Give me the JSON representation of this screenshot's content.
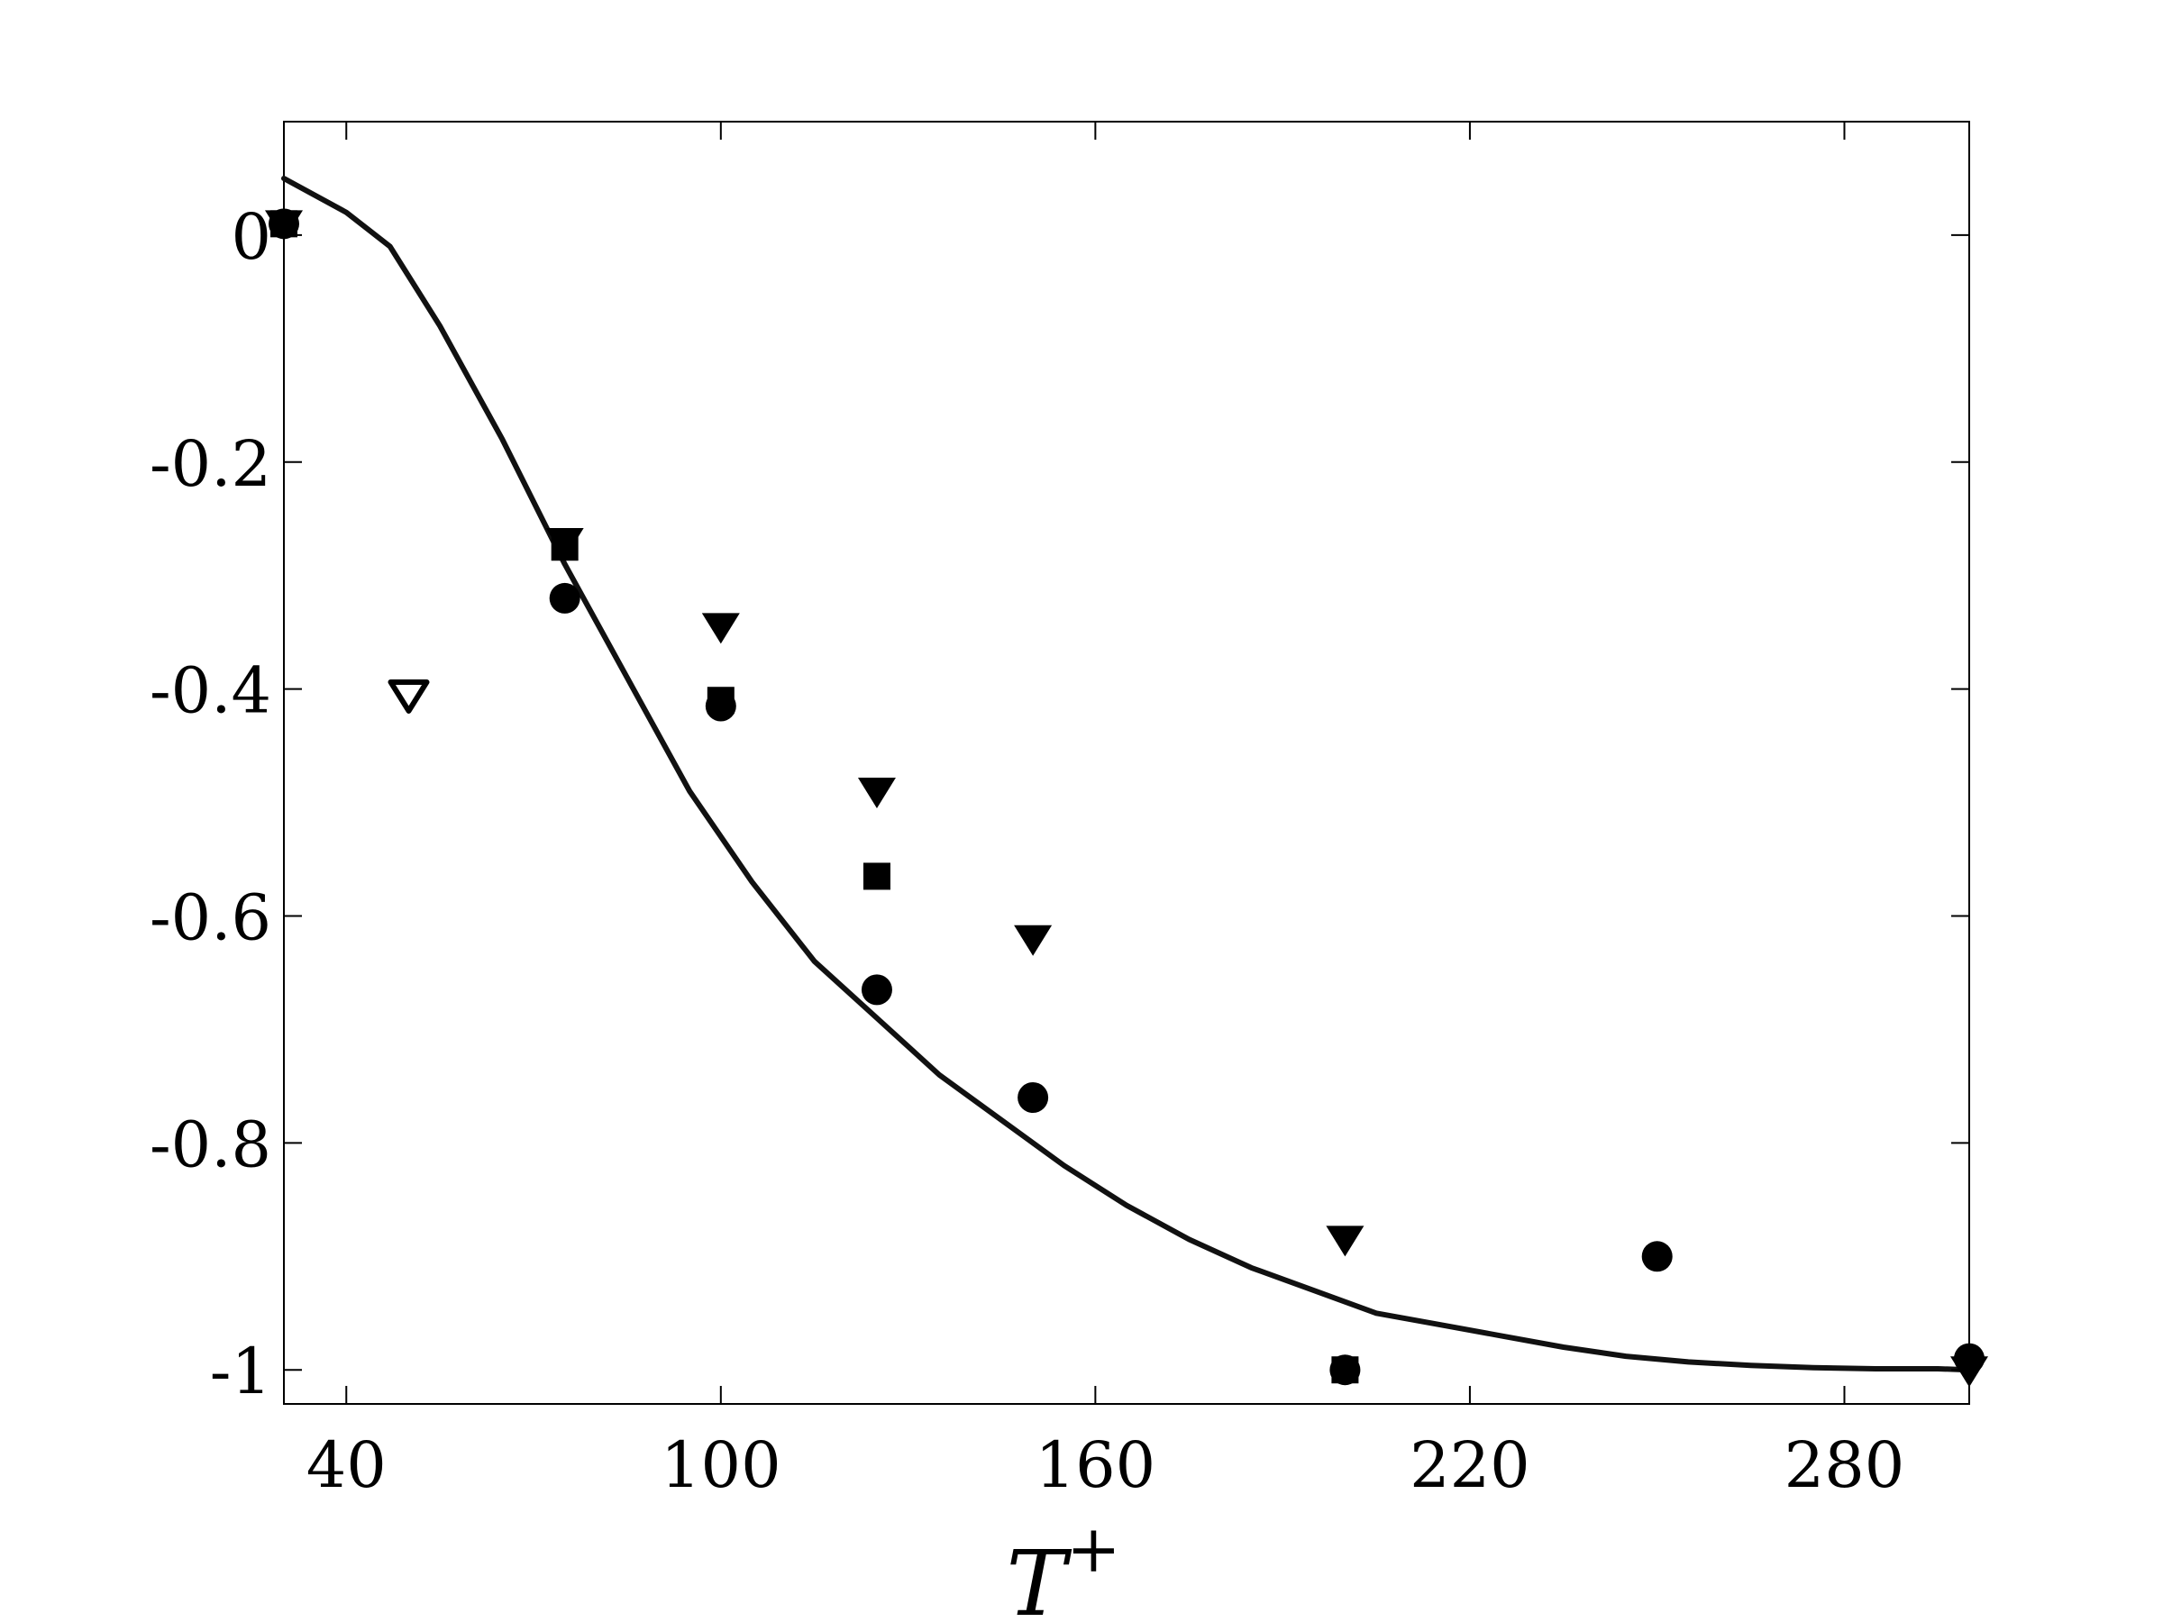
{
  "chart_data": {
    "type": "scatter",
    "xlabel": "T",
    "xlabel_superscript": "+",
    "ylabel": "",
    "xlim": [
      30,
      300
    ],
    "ylim": [
      -1.03,
      0.1
    ],
    "xticks": [
      40,
      100,
      160,
      220,
      280
    ],
    "yticks": [
      0,
      -0.2,
      -0.4,
      -0.6,
      -0.8,
      -1
    ],
    "xtick_labels": [
      "40",
      "100",
      "160",
      "220",
      "280"
    ],
    "ytick_labels": [
      "0",
      "-0.2",
      "-0.4",
      "-0.6",
      "-0.8",
      "-1"
    ],
    "grid": false,
    "series": [
      {
        "marker": "line",
        "color": "#111111",
        "x": [
          30,
          40,
          47,
          55,
          65,
          75,
          85,
          95,
          105,
          115,
          125,
          135,
          145,
          155,
          165,
          175,
          185,
          195,
          205,
          215,
          225,
          235,
          245,
          255,
          265,
          275,
          285,
          295,
          300
        ],
        "y": [
          0.05,
          0.02,
          -0.01,
          -0.08,
          -0.18,
          -0.29,
          -0.39,
          -0.49,
          -0.57,
          -0.64,
          -0.69,
          -0.74,
          -0.78,
          -0.82,
          -0.855,
          -0.885,
          -0.91,
          -0.93,
          -0.95,
          -0.96,
          -0.97,
          -0.98,
          -0.988,
          -0.993,
          -0.996,
          -0.998,
          -0.999,
          -0.999,
          -1.0
        ]
      },
      {
        "marker": "circle",
        "color": "#000000",
        "x": [
          30,
          75,
          100,
          125,
          150,
          200,
          250,
          300
        ],
        "y": [
          0.01,
          -0.32,
          -0.415,
          -0.665,
          -0.76,
          -1.0,
          -0.9,
          -0.99
        ]
      },
      {
        "marker": "square",
        "color": "#000000",
        "x": [
          30,
          75,
          100,
          125,
          200
        ],
        "y": [
          0.01,
          -0.275,
          -0.41,
          -0.565,
          -1.0
        ]
      },
      {
        "marker": "triangle-down",
        "color": "#000000",
        "x": [
          30,
          75,
          100,
          125,
          150,
          200,
          300
        ],
        "y": [
          0.01,
          -0.27,
          -0.345,
          -0.49,
          -0.62,
          -0.885,
          -1.0
        ]
      },
      {
        "marker": "triangle-down-open",
        "color": "#000000",
        "x": [
          50
        ],
        "y": [
          -0.405
        ]
      }
    ]
  }
}
